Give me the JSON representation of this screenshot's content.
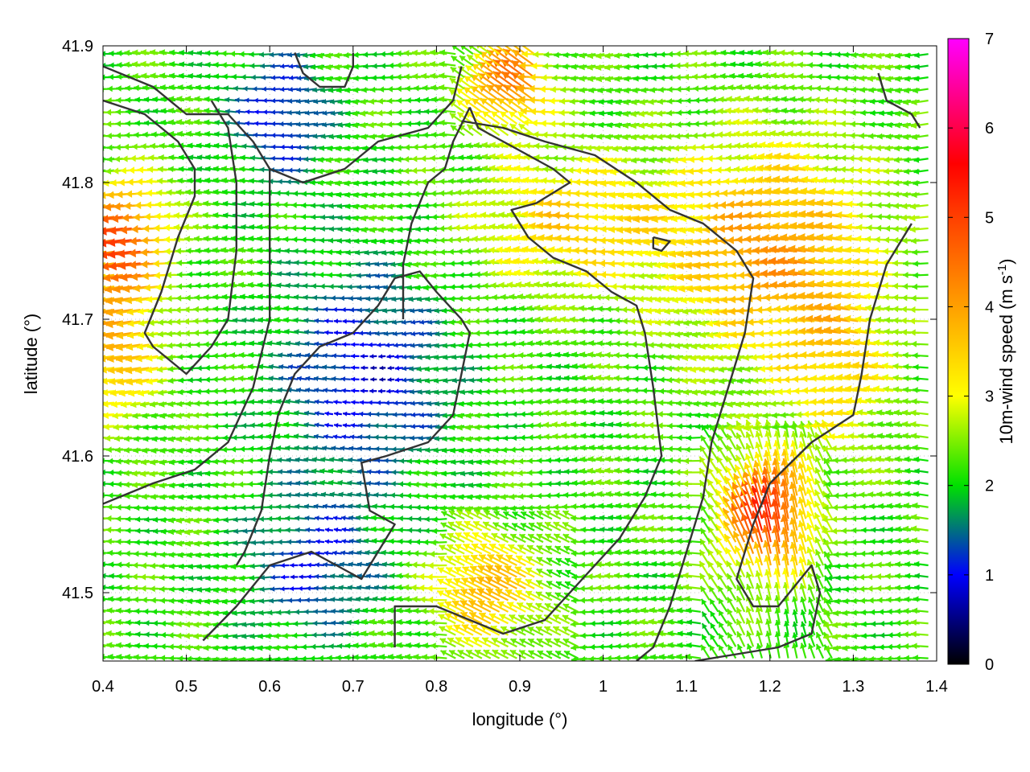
{
  "chart_data": {
    "type": "vector-field",
    "xlabel": "longitude (°)",
    "ylabel": "latitude (°)",
    "xlim": [
      0.4,
      1.4
    ],
    "ylim": [
      41.45,
      41.9
    ],
    "x_ticks": [
      "0.4",
      "0.5",
      "0.6",
      "0.7",
      "0.8",
      "0.9",
      "1",
      "1.1",
      "1.2",
      "1.3",
      "1.4"
    ],
    "y_ticks": [
      "41.5",
      "41.6",
      "41.7",
      "41.8",
      "41.9"
    ],
    "colorbar": {
      "label_main": "10m-wind speed (m s",
      "label_sup": "-1",
      "label_close": ")",
      "range": [
        0,
        7
      ],
      "ticks": [
        "0",
        "1",
        "2",
        "3",
        "4",
        "5",
        "6",
        "7"
      ],
      "stops": [
        "#000000",
        "#0000ff",
        "#00e000",
        "#ffff00",
        "#ffa000",
        "#ff0000",
        "#ff00ff"
      ]
    },
    "grid": true,
    "wind_direction": "predominantly from east toward west (vectors pointing left)",
    "wind_regions": [
      {
        "area": "west edge, lon 0.40–0.50, lat 41.70–41.80",
        "speed": 5.0
      },
      {
        "area": "central basin, lon 0.60–0.85, lat 41.55–41.75",
        "speed": 1.2
      },
      {
        "area": "central-east, lon 0.85–1.05, lat 41.60–41.80",
        "speed": 2.2
      },
      {
        "area": "east, lon 1.10–1.35, lat 41.65–41.85",
        "speed": 4.0
      },
      {
        "area": "southeast, lon 1.15–1.25, lat 41.50–41.60",
        "speed": 5.5
      },
      {
        "area": "north strip, lon 0.85–0.95, lat 41.85–41.90",
        "speed": 4.5
      }
    ],
    "contours": [
      [
        [
          0.4,
          41.885
        ],
        [
          0.46,
          41.87
        ],
        [
          0.5,
          41.85
        ],
        [
          0.55,
          41.85
        ],
        [
          0.58,
          41.83
        ],
        [
          0.6,
          41.81
        ],
        [
          0.64,
          41.8
        ],
        [
          0.69,
          41.81
        ],
        [
          0.73,
          41.83
        ],
        [
          0.79,
          41.84
        ],
        [
          0.82,
          41.86
        ],
        [
          0.83,
          41.885
        ]
      ],
      [
        [
          0.4,
          41.86
        ],
        [
          0.45,
          41.85
        ],
        [
          0.49,
          41.83
        ],
        [
          0.51,
          41.81
        ],
        [
          0.51,
          41.79
        ],
        [
          0.49,
          41.76
        ],
        [
          0.47,
          41.72
        ],
        [
          0.45,
          41.69
        ],
        [
          0.46,
          41.68
        ],
        [
          0.5,
          41.66
        ],
        [
          0.53,
          41.68
        ],
        [
          0.55,
          41.7
        ],
        [
          0.56,
          41.75
        ],
        [
          0.56,
          41.8
        ],
        [
          0.55,
          41.84
        ],
        [
          0.53,
          41.86
        ]
      ],
      [
        [
          0.6,
          41.81
        ],
        [
          0.6,
          41.75
        ],
        [
          0.6,
          41.7
        ],
        [
          0.58,
          41.65
        ],
        [
          0.55,
          41.61
        ],
        [
          0.51,
          41.59
        ],
        [
          0.46,
          41.58
        ],
        [
          0.42,
          41.57
        ],
        [
          0.4,
          41.565
        ]
      ],
      [
        [
          0.63,
          41.895
        ],
        [
          0.64,
          41.88
        ],
        [
          0.66,
          41.87
        ],
        [
          0.69,
          41.87
        ],
        [
          0.7,
          41.885
        ],
        [
          0.7,
          41.895
        ]
      ],
      [
        [
          0.75,
          41.73
        ],
        [
          0.78,
          41.735
        ],
        [
          0.8,
          41.72
        ],
        [
          0.83,
          41.7
        ],
        [
          0.84,
          41.69
        ],
        [
          0.82,
          41.63
        ],
        [
          0.79,
          41.61
        ],
        [
          0.74,
          41.6
        ],
        [
          0.71,
          41.595
        ],
        [
          0.72,
          41.56
        ],
        [
          0.75,
          41.55
        ],
        [
          0.71,
          41.51
        ],
        [
          0.65,
          41.53
        ],
        [
          0.6,
          41.52
        ],
        [
          0.56,
          41.49
        ],
        [
          0.52,
          41.465
        ]
      ],
      [
        [
          0.75,
          41.73
        ],
        [
          0.73,
          41.71
        ],
        [
          0.7,
          41.69
        ],
        [
          0.66,
          41.68
        ],
        [
          0.63,
          41.66
        ],
        [
          0.61,
          41.63
        ],
        [
          0.6,
          41.6
        ],
        [
          0.59,
          41.56
        ],
        [
          0.57,
          41.53
        ],
        [
          0.56,
          41.52
        ]
      ],
      [
        [
          0.84,
          41.855
        ],
        [
          0.85,
          41.84
        ],
        [
          0.88,
          41.83
        ],
        [
          0.91,
          41.82
        ],
        [
          0.94,
          41.81
        ],
        [
          0.96,
          41.8
        ],
        [
          0.92,
          41.785
        ],
        [
          0.89,
          41.78
        ],
        [
          0.91,
          41.76
        ],
        [
          0.94,
          41.745
        ],
        [
          0.98,
          41.735
        ],
        [
          1.01,
          41.72
        ],
        [
          1.04,
          41.71
        ],
        [
          1.05,
          41.69
        ],
        [
          1.06,
          41.65
        ],
        [
          1.07,
          41.6
        ],
        [
          1.05,
          41.57
        ],
        [
          1.02,
          41.54
        ],
        [
          0.99,
          41.52
        ],
        [
          0.96,
          41.5
        ],
        [
          0.93,
          41.48
        ],
        [
          0.88,
          41.47
        ],
        [
          0.84,
          41.48
        ],
        [
          0.8,
          41.49
        ],
        [
          0.75,
          41.49
        ],
        [
          0.75,
          41.46
        ]
      ],
      [
        [
          0.84,
          41.855
        ],
        [
          0.82,
          41.83
        ],
        [
          0.81,
          41.81
        ],
        [
          0.79,
          41.8
        ],
        [
          0.77,
          41.77
        ],
        [
          0.76,
          41.74
        ],
        [
          0.76,
          41.7
        ]
      ],
      [
        [
          0.83,
          41.845
        ],
        [
          0.88,
          41.84
        ],
        [
          0.93,
          41.83
        ],
        [
          0.99,
          41.82
        ],
        [
          1.04,
          41.8
        ],
        [
          1.08,
          41.78
        ],
        [
          1.12,
          41.77
        ],
        [
          1.16,
          41.75
        ],
        [
          1.18,
          41.73
        ],
        [
          1.17,
          41.69
        ],
        [
          1.15,
          41.65
        ],
        [
          1.13,
          41.61
        ],
        [
          1.12,
          41.57
        ],
        [
          1.1,
          41.53
        ],
        [
          1.08,
          41.49
        ],
        [
          1.06,
          41.46
        ],
        [
          1.04,
          41.45
        ]
      ],
      [
        [
          1.06,
          41.76
        ],
        [
          1.08,
          41.757
        ],
        [
          1.07,
          41.75
        ],
        [
          1.06,
          41.752
        ],
        [
          1.06,
          41.76
        ]
      ],
      [
        [
          1.37,
          41.77
        ],
        [
          1.34,
          41.74
        ],
        [
          1.32,
          41.7
        ],
        [
          1.31,
          41.66
        ],
        [
          1.3,
          41.63
        ],
        [
          1.25,
          41.61
        ],
        [
          1.2,
          41.58
        ],
        [
          1.18,
          41.55
        ],
        [
          1.16,
          41.51
        ],
        [
          1.18,
          41.49
        ],
        [
          1.21,
          41.49
        ],
        [
          1.25,
          41.52
        ],
        [
          1.26,
          41.5
        ],
        [
          1.25,
          41.47
        ],
        [
          1.21,
          41.46
        ],
        [
          1.16,
          41.455
        ],
        [
          1.11,
          41.45
        ]
      ],
      [
        [
          1.33,
          41.88
        ],
        [
          1.34,
          41.86
        ],
        [
          1.37,
          41.85
        ],
        [
          1.38,
          41.84
        ]
      ]
    ]
  }
}
